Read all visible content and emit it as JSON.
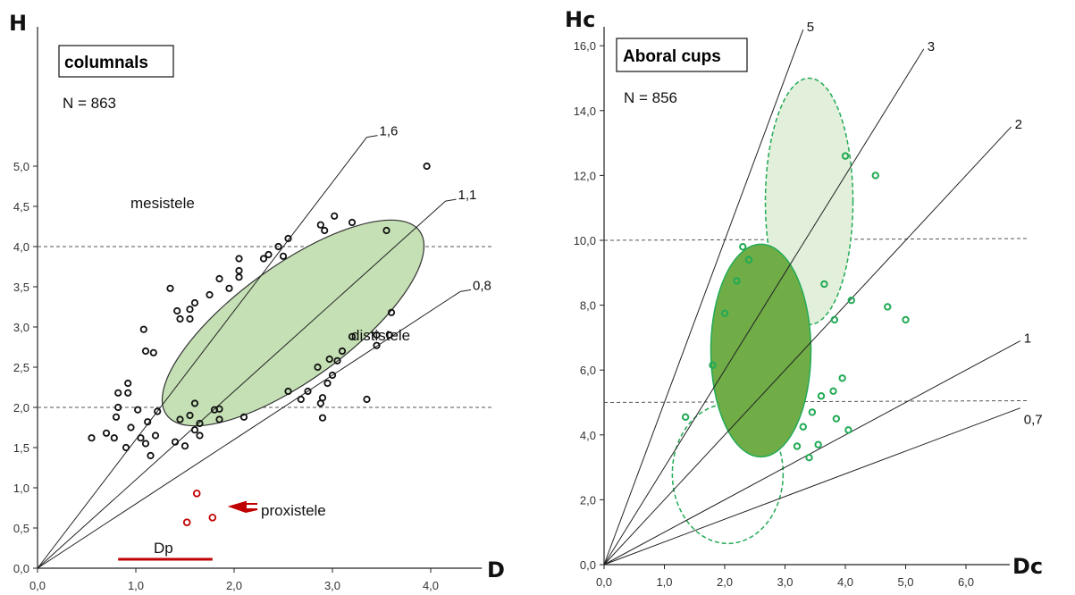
{
  "chart_data": [
    {
      "type": "scatter",
      "title": "columnals",
      "n_label": "N = 863",
      "xlabel": "D",
      "ylabel": "H",
      "xlim": [
        0,
        4.2
      ],
      "ylim": [
        0,
        5.2
      ],
      "xticks": [
        "0,0",
        "1,0",
        "2,0",
        "3,0",
        "4,0"
      ],
      "yticks": [
        "0,0",
        "0,5",
        "1,0",
        "1,5",
        "2,0",
        "2,5",
        "3,0",
        "3,5",
        "4,0",
        "4,5",
        "5,0"
      ],
      "grid": false,
      "ratio_lines": [
        {
          "label": "1,6",
          "slope": 1.6
        },
        {
          "label": "1,1",
          "slope": 1.1
        },
        {
          "label": "0,8",
          "slope": 0.8
        }
      ],
      "reference_lines_h": [
        2.0,
        4.0
      ],
      "annotations": {
        "mesistele": "mesistele",
        "dististele": "dististele",
        "proxistele": "proxistele",
        "dp": "Dp"
      },
      "colors": {
        "points": "#111111",
        "proxistele": "#c00000",
        "ellipse_fill": "#c5e0b4",
        "ellipse_stroke": "#333333"
      },
      "ellipse": {
        "center": [
          2.6,
          3.05
        ],
        "tilt_deg_in_data": 36
      },
      "dp_segment": [
        0.82,
        1.78
      ],
      "series": [
        {
          "name": "",
          "points": [
            [
              0.55,
              1.62
            ],
            [
              0.7,
              1.68
            ],
            [
              0.78,
              1.62
            ],
            [
              0.8,
              1.88
            ],
            [
              0.82,
              2.0
            ],
            [
              0.82,
              2.18
            ],
            [
              0.92,
              2.18
            ],
            [
              0.92,
              2.3
            ],
            [
              0.9,
              1.5
            ],
            [
              0.95,
              1.75
            ],
            [
              1.05,
              1.62
            ],
            [
              1.1,
              1.55
            ],
            [
              1.12,
              1.82
            ],
            [
              1.15,
              1.4
            ],
            [
              1.2,
              1.65
            ],
            [
              1.22,
              1.95
            ],
            [
              1.02,
              1.97
            ],
            [
              1.08,
              2.97
            ],
            [
              1.1,
              2.7
            ],
            [
              1.18,
              2.68
            ],
            [
              1.35,
              3.48
            ],
            [
              1.4,
              1.57
            ],
            [
              1.45,
              1.85
            ],
            [
              1.5,
              1.52
            ],
            [
              1.55,
              1.9
            ],
            [
              1.6,
              2.05
            ],
            [
              1.6,
              1.72
            ],
            [
              1.65,
              1.65
            ],
            [
              1.65,
              1.8
            ],
            [
              1.42,
              3.2
            ],
            [
              1.45,
              3.1
            ],
            [
              1.55,
              3.1
            ],
            [
              1.55,
              3.22
            ],
            [
              1.6,
              3.3
            ],
            [
              1.75,
              3.4
            ],
            [
              1.8,
              1.97
            ],
            [
              1.85,
              1.98
            ],
            [
              1.85,
              1.85
            ],
            [
              1.85,
              3.6
            ],
            [
              1.95,
              3.48
            ],
            [
              2.05,
              3.62
            ],
            [
              2.05,
              3.7
            ],
            [
              2.05,
              3.85
            ],
            [
              2.1,
              1.88
            ],
            [
              2.3,
              3.85
            ],
            [
              2.35,
              3.9
            ],
            [
              2.45,
              4.0
            ],
            [
              2.5,
              3.88
            ],
            [
              2.55,
              4.1
            ],
            [
              2.55,
              2.2
            ],
            [
              2.68,
              2.1
            ],
            [
              2.75,
              2.2
            ],
            [
              2.85,
              2.5
            ],
            [
              2.88,
              2.05
            ],
            [
              2.9,
              2.12
            ],
            [
              2.9,
              1.87
            ],
            [
              2.88,
              4.27
            ],
            [
              2.92,
              4.2
            ],
            [
              2.95,
              2.3
            ],
            [
              2.97,
              2.6
            ],
            [
              3.0,
              2.4
            ],
            [
              3.02,
              4.38
            ],
            [
              3.05,
              2.58
            ],
            [
              3.1,
              2.7
            ],
            [
              3.2,
              4.3
            ],
            [
              3.2,
              2.88
            ],
            [
              3.35,
              2.1
            ],
            [
              3.45,
              2.77
            ],
            [
              3.45,
              2.9
            ],
            [
              3.55,
              4.2
            ],
            [
              3.58,
              2.9
            ],
            [
              3.6,
              3.18
            ],
            [
              3.96,
              5.0
            ]
          ]
        },
        {
          "name": "proxistele",
          "points": [
            [
              1.52,
              0.57
            ],
            [
              1.62,
              0.93
            ],
            [
              1.78,
              0.63
            ]
          ]
        }
      ]
    },
    {
      "type": "scatter",
      "title": "Aboral cups",
      "n_label": "N = 856",
      "xlabel": "Dc",
      "ylabel": "Hc",
      "xlim": [
        0,
        7.0
      ],
      "ylim": [
        0,
        16.8
      ],
      "xticks": [
        "0,0",
        "1,0",
        "2,0",
        "3,0",
        "4,0",
        "5,0",
        "6,0"
      ],
      "yticks": [
        "0,0",
        "2,0",
        "4,0",
        "6,0",
        "8,0",
        "10,0",
        "12,0",
        "14,0",
        "16,0"
      ],
      "grid": false,
      "ratio_lines": [
        {
          "label": "5",
          "slope": 5
        },
        {
          "label": "3",
          "slope": 3
        },
        {
          "label": "2",
          "slope": 2
        },
        {
          "label": "1",
          "slope": 1
        },
        {
          "label": "0,7",
          "slope": 0.7
        }
      ],
      "reference_lines_h": [
        5.0,
        10.0
      ],
      "colors": {
        "points": "#22aa55",
        "ellipse_mid": "#70ad47",
        "ellipse_top": "#e2efda",
        "ellipse_stroke": "#22aa55"
      },
      "series": [
        {
          "name": "",
          "points": [
            [
              1.35,
              4.55
            ],
            [
              1.8,
              6.15
            ],
            [
              2.0,
              7.75
            ],
            [
              2.2,
              8.75
            ],
            [
              2.3,
              9.8
            ],
            [
              2.4,
              9.4
            ],
            [
              3.2,
              3.65
            ],
            [
              3.3,
              4.25
            ],
            [
              3.4,
              3.3
            ],
            [
              3.45,
              4.7
            ],
            [
              3.55,
              3.7
            ],
            [
              3.6,
              5.2
            ],
            [
              3.65,
              8.65
            ],
            [
              3.8,
              5.35
            ],
            [
              3.85,
              4.5
            ],
            [
              3.82,
              7.55
            ],
            [
              3.95,
              5.75
            ],
            [
              4.0,
              12.6
            ],
            [
              4.05,
              4.15
            ],
            [
              4.1,
              8.15
            ],
            [
              4.5,
              12.0
            ],
            [
              4.7,
              7.95
            ],
            [
              5.0,
              7.55
            ]
          ]
        }
      ]
    }
  ]
}
